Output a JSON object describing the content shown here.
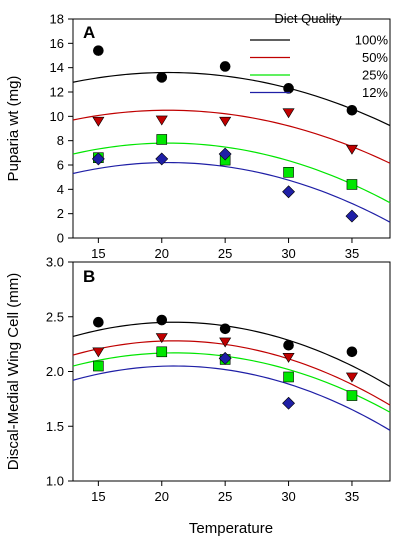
{
  "figure": {
    "xlabel": "Temperature"
  },
  "legend": {
    "title": "Diet Quality"
  },
  "chart_data": [
    {
      "type": "scatter",
      "panel": "A",
      "ylabel": "Puparia wt (mg)",
      "xlabel": "Temperature",
      "xlim": [
        13,
        38
      ],
      "ylim": [
        0,
        18
      ],
      "xticks": [
        "15",
        "20",
        "25",
        "30",
        "35"
      ],
      "yticks": [
        "0",
        "2",
        "4",
        "6",
        "8",
        "10",
        "12",
        "14",
        "16",
        "18"
      ],
      "legend_title": "Diet Quality",
      "legend_position": "top-right",
      "grid": false,
      "x": [
        15,
        20,
        25,
        30,
        35
      ],
      "series": [
        {
          "name": "100%",
          "color": "#000000",
          "marker": "circle",
          "values": [
            15.4,
            13.2,
            14.1,
            12.3,
            10.5
          ],
          "fit_curve": "quadratic"
        },
        {
          "name": "50%",
          "color": "#c00000",
          "marker": "triangle-down",
          "values": [
            9.6,
            9.7,
            9.6,
            10.3,
            7.3
          ],
          "fit_curve": "quadratic"
        },
        {
          "name": "25%",
          "color": "#00e600",
          "marker": "square",
          "values": [
            6.6,
            8.1,
            6.4,
            5.4,
            4.4
          ],
          "fit_curve": "quadratic"
        },
        {
          "name": "12%",
          "color": "#1f1fa6",
          "marker": "diamond",
          "values": [
            6.5,
            6.5,
            6.9,
            3.8,
            1.8
          ],
          "fit_curve": "quadratic"
        }
      ],
      "fits": [
        {
          "name": "100%",
          "x": [
            13,
            20.5,
            28,
            38
          ],
          "values": [
            12.8,
            13.6,
            12.8,
            8.5
          ]
        },
        {
          "name": "50%",
          "x": [
            13,
            20.5,
            28,
            38
          ],
          "values": [
            9.7,
            10.5,
            9.7,
            5.5
          ]
        },
        {
          "name": "25%",
          "x": [
            13,
            20.5,
            28,
            38
          ],
          "values": [
            6.9,
            7.8,
            6.9,
            2.6
          ]
        },
        {
          "name": "12%",
          "x": [
            13,
            20.5,
            28,
            38
          ],
          "values": [
            5.3,
            6.2,
            5.3,
            1.2
          ]
        }
      ]
    },
    {
      "type": "scatter",
      "panel": "B",
      "ylabel": "Discal-Medial Wing Cell (mm)",
      "xlabel": "Temperature",
      "xlim": [
        13,
        38
      ],
      "ylim": [
        1.0,
        3.0
      ],
      "xticks": [
        "15",
        "20",
        "25",
        "30",
        "35"
      ],
      "yticks": [
        "1.0",
        "1.5",
        "2.0",
        "2.5",
        "3.0"
      ],
      "grid": false,
      "x": [
        15,
        20,
        25,
        30,
        35
      ],
      "series": [
        {
          "name": "100%",
          "color": "#000000",
          "marker": "circle",
          "values": [
            2.45,
            2.47,
            2.39,
            2.24,
            2.18
          ],
          "fit_curve": "quadratic"
        },
        {
          "name": "50%",
          "color": "#c00000",
          "marker": "triangle-down",
          "values": [
            2.18,
            2.31,
            2.27,
            2.13,
            1.95
          ],
          "fit_curve": "quadratic"
        },
        {
          "name": "25%",
          "color": "#00e600",
          "marker": "square",
          "values": [
            2.05,
            2.18,
            2.11,
            1.95,
            1.78
          ],
          "fit_curve": "quadratic"
        },
        {
          "name": "12%",
          "color": "#1f1fa6",
          "marker": "diamond",
          "values": [
            null,
            null,
            2.12,
            1.71,
            null
          ],
          "fit_curve": "quadratic"
        }
      ],
      "fits": [
        {
          "name": "100%",
          "x": [
            13,
            21,
            29,
            38
          ],
          "values": [
            2.32,
            2.45,
            2.32,
            1.82
          ]
        },
        {
          "name": "50%",
          "x": [
            13,
            21,
            29,
            38
          ],
          "values": [
            2.15,
            2.28,
            2.15,
            1.65
          ]
        },
        {
          "name": "25%",
          "x": [
            13,
            21,
            29,
            38
          ],
          "values": [
            2.05,
            2.17,
            2.05,
            1.53
          ]
        },
        {
          "name": "12%",
          "x": [
            13,
            21,
            29,
            38
          ],
          "values": [
            1.92,
            2.05,
            1.92,
            1.42
          ]
        }
      ]
    }
  ]
}
